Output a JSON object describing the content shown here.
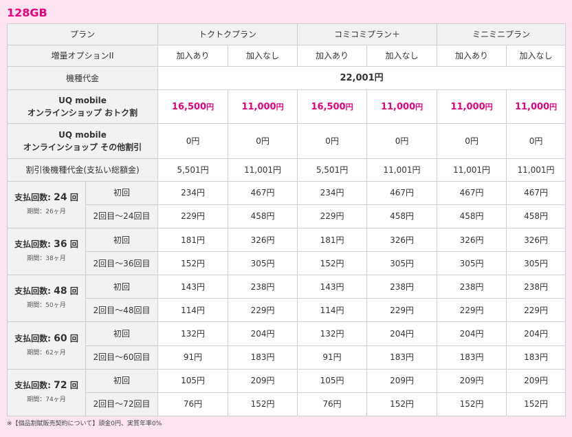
{
  "title": "128GB",
  "header": {
    "plan_label": "プラン",
    "plans": [
      "トクトクプラン",
      "コミコミプラン＋",
      "ミニミニプラン"
    ],
    "option_label": "増量オプションII",
    "option_yes": "加入あり",
    "option_no": "加入なし"
  },
  "device_price": {
    "label": "機種代金",
    "value": "22,001円"
  },
  "discount_otoku": {
    "label_line1": "UQ mobile",
    "label_line2": "オンラインショップ おトク割",
    "values": [
      "16,500",
      "11,000",
      "16,500",
      "11,000",
      "11,000",
      "11,000"
    ],
    "unit": "円"
  },
  "discount_other": {
    "label_line1": "UQ mobile",
    "label_line2": "オンラインショップ その他割引",
    "values": [
      "0円",
      "0円",
      "0円",
      "0円",
      "0円",
      "0円"
    ]
  },
  "after_discount": {
    "label": "割引後機種代金(支払い総額金)",
    "values": [
      "5,501円",
      "11,001円",
      "5,501円",
      "11,001円",
      "11,001円",
      "11,001円"
    ]
  },
  "installments": [
    {
      "label_prefix": "支払回数:",
      "count": "24",
      "label_suffix": "回",
      "period": "期間：26ヶ月",
      "first_label": "初回",
      "rest_label": "2回目〜24回目",
      "first": [
        "234円",
        "467円",
        "234円",
        "467円",
        "467円",
        "467円"
      ],
      "rest": [
        "229円",
        "458円",
        "229円",
        "458円",
        "458円",
        "458円"
      ]
    },
    {
      "label_prefix": "支払回数:",
      "count": "36",
      "label_suffix": "回",
      "period": "期間：38ヶ月",
      "first_label": "初回",
      "rest_label": "2回目〜36回目",
      "first": [
        "181円",
        "326円",
        "181円",
        "326円",
        "326円",
        "326円"
      ],
      "rest": [
        "152円",
        "305円",
        "152円",
        "305円",
        "305円",
        "305円"
      ]
    },
    {
      "label_prefix": "支払回数:",
      "count": "48",
      "label_suffix": "回",
      "period": "期間：50ヶ月",
      "first_label": "初回",
      "rest_label": "2回目〜48回目",
      "first": [
        "143円",
        "238円",
        "143円",
        "238円",
        "238円",
        "238円"
      ],
      "rest": [
        "114円",
        "229円",
        "114円",
        "229円",
        "229円",
        "229円"
      ]
    },
    {
      "label_prefix": "支払回数:",
      "count": "60",
      "label_suffix": "回",
      "period": "期間：62ヶ月",
      "first_label": "初回",
      "rest_label": "2回目〜60回目",
      "first": [
        "132円",
        "204円",
        "132円",
        "204円",
        "204円",
        "204円"
      ],
      "rest": [
        "91円",
        "183円",
        "91円",
        "183円",
        "183円",
        "183円"
      ]
    },
    {
      "label_prefix": "支払回数:",
      "count": "72",
      "label_suffix": "回",
      "period": "期間：74ヶ月",
      "first_label": "初回",
      "rest_label": "2回目〜72回目",
      "first": [
        "105円",
        "209円",
        "105円",
        "209円",
        "209円",
        "209円"
      ],
      "rest": [
        "76円",
        "152円",
        "76円",
        "152円",
        "152円",
        "152円"
      ]
    }
  ],
  "note": "※【個品割賦販売契約について】頭金0円、実質年率0%",
  "colors": {
    "accent": "#e4007f",
    "background": "#fce4f0",
    "header_bg": "#f2f2f2",
    "border": "#cfcfcf"
  }
}
